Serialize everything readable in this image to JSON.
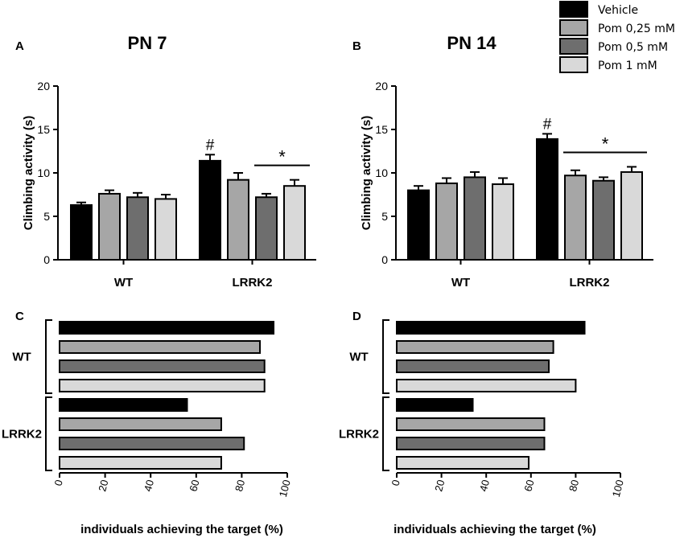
{
  "legend": {
    "entries": [
      {
        "label": "Vehicle",
        "color": "#000000"
      },
      {
        "label": "Pom 0,25 mM",
        "color": "#a6a6a6"
      },
      {
        "label": "Pom 0,5 mM",
        "color": "#6e6e6e"
      },
      {
        "label": "Pom 1 mM",
        "color": "#d9d9d9"
      }
    ]
  },
  "chart_data": [
    {
      "panel": "A",
      "type": "bar",
      "title": "PN 7",
      "ylabel": "Climbing activity (s)",
      "ylim": [
        0,
        20
      ],
      "yticks": [
        "0",
        "5",
        "10",
        "15",
        "20"
      ],
      "categories": [
        "WT",
        "LRRK2"
      ],
      "series": [
        {
          "name": "Vehicle",
          "values": [
            6.3,
            11.4
          ],
          "errors": [
            0.3,
            0.7
          ]
        },
        {
          "name": "Pom 0,25 mM",
          "values": [
            7.6,
            9.2
          ],
          "errors": [
            0.4,
            0.8
          ]
        },
        {
          "name": "Pom 0,5 mM",
          "values": [
            7.2,
            7.2
          ],
          "errors": [
            0.5,
            0.4
          ]
        },
        {
          "name": "Pom 1 mM",
          "values": [
            7.0,
            8.5
          ],
          "errors": [
            0.5,
            0.7
          ]
        }
      ],
      "annotations": [
        {
          "text": "#",
          "category": "LRRK2",
          "series": "Vehicle"
        },
        {
          "text": "*",
          "category": "LRRK2",
          "from_series": "Pom 0,5 mM",
          "to_series": "Pom 1 mM"
        }
      ]
    },
    {
      "panel": "B",
      "type": "bar",
      "title": "PN 14",
      "ylabel": "Climbing activity (s)",
      "ylim": [
        0,
        20
      ],
      "yticks": [
        "0",
        "5",
        "10",
        "15",
        "20"
      ],
      "categories": [
        "WT",
        "LRRK2"
      ],
      "series": [
        {
          "name": "Vehicle",
          "values": [
            8.0,
            13.9
          ],
          "errors": [
            0.5,
            0.6
          ]
        },
        {
          "name": "Pom 0,25 mM",
          "values": [
            8.8,
            9.7
          ],
          "errors": [
            0.6,
            0.6
          ]
        },
        {
          "name": "Pom 0,5 mM",
          "values": [
            9.5,
            9.1
          ],
          "errors": [
            0.6,
            0.4
          ]
        },
        {
          "name": "Pom 1 mM",
          "values": [
            8.7,
            10.1
          ],
          "errors": [
            0.7,
            0.6
          ]
        }
      ],
      "annotations": [
        {
          "text": "#",
          "category": "LRRK2",
          "series": "Vehicle"
        },
        {
          "text": "*",
          "category": "LRRK2",
          "from_series": "Pom 0,25 mM",
          "to_series": "Pom 1 mM"
        }
      ]
    },
    {
      "panel": "C",
      "type": "bar",
      "orientation": "horizontal",
      "xlabel": "individuals achieving the target (%)",
      "xlim": [
        0,
        100
      ],
      "xticks": [
        "0",
        "20",
        "40",
        "60",
        "80",
        "100"
      ],
      "categories": [
        "WT",
        "LRRK2"
      ],
      "series": [
        {
          "name": "Vehicle",
          "values": [
            94,
            56
          ]
        },
        {
          "name": "Pom 0,25 mM",
          "values": [
            88,
            71
          ]
        },
        {
          "name": "Pom 0,5 mM",
          "values": [
            90,
            81
          ]
        },
        {
          "name": "Pom 1 mM",
          "values": [
            90,
            71
          ]
        }
      ]
    },
    {
      "panel": "D",
      "type": "bar",
      "orientation": "horizontal",
      "xlabel": "individuals achieving the target (%)",
      "xlim": [
        0,
        100
      ],
      "xticks": [
        "0",
        "20",
        "40",
        "60",
        "80",
        "100"
      ],
      "categories": [
        "WT",
        "LRRK2"
      ],
      "series": [
        {
          "name": "Vehicle",
          "values": [
            84,
            34
          ]
        },
        {
          "name": "Pom 0,25 mM",
          "values": [
            70,
            66
          ]
        },
        {
          "name": "Pom 0,5 mM",
          "values": [
            68,
            66
          ]
        },
        {
          "name": "Pom 1 mM",
          "values": [
            80,
            59
          ]
        }
      ]
    }
  ]
}
